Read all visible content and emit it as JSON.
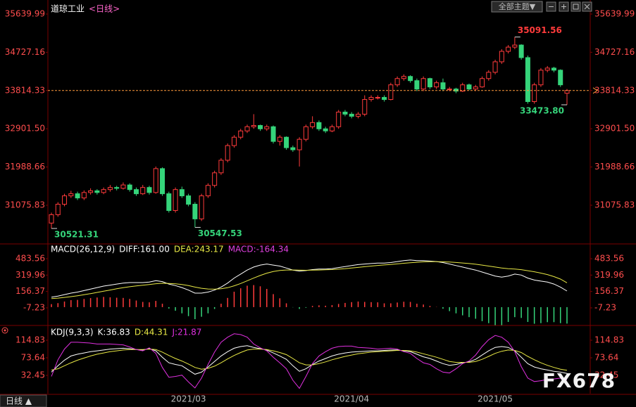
{
  "chart_data": [
    {
      "type": "candlestick",
      "title": "道琼工业",
      "subtitle": "<日线>",
      "up_color": "#ff3b3b",
      "down_color": "#35d47a",
      "last_price_line": true,
      "ylim": [
        30186,
        35841
      ],
      "yticks": [
        35639.99,
        34727.16,
        33814.33,
        {
          "value": 32901.5,
          "label": "32901.50"
        },
        31988.66,
        31075.83
      ],
      "categories": [
        null,
        null,
        null,
        null,
        null,
        null,
        null,
        null,
        null,
        null,
        null,
        null,
        null,
        null,
        null,
        null,
        null,
        null,
        null,
        null,
        null,
        "2021/03",
        null,
        null,
        null,
        null,
        null,
        null,
        null,
        null,
        null,
        null,
        null,
        null,
        null,
        null,
        null,
        null,
        null,
        null,
        null,
        null,
        null,
        null,
        null,
        null,
        "2021/04",
        null,
        null,
        null,
        null,
        null,
        null,
        null,
        null,
        null,
        null,
        null,
        null,
        null,
        null,
        null,
        null,
        null,
        null,
        null,
        null,
        null,
        "2021/05",
        null,
        null,
        null,
        null,
        null,
        null,
        null,
        null,
        null,
        null,
        null
      ],
      "candles": [
        [
          30650,
          30900,
          30521.31,
          30850
        ],
        [
          30850,
          31150,
          30800,
          31100
        ],
        [
          31100,
          31350,
          31050,
          31300
        ],
        [
          31300,
          31420,
          31250,
          31350
        ],
        [
          31350,
          31400,
          31200,
          31250
        ],
        [
          31250,
          31430,
          31200,
          31380
        ],
        [
          31380,
          31480,
          31330,
          31420
        ],
        [
          31420,
          31460,
          31330,
          31380
        ],
        [
          31380,
          31500,
          31340,
          31450
        ],
        [
          31450,
          31560,
          31400,
          31500
        ],
        [
          31500,
          31540,
          31430,
          31480
        ],
        [
          31480,
          31620,
          31450,
          31560
        ],
        [
          31560,
          31600,
          31400,
          31450
        ],
        [
          31450,
          31500,
          31300,
          31350
        ],
        [
          31350,
          31560,
          31320,
          31500
        ],
        [
          31500,
          31540,
          31330,
          31380
        ],
        [
          31380,
          32000,
          31350,
          31950
        ],
        [
          31950,
          31980,
          31300,
          31350
        ],
        [
          31350,
          31400,
          30900,
          30950
        ],
        [
          30950,
          31500,
          30900,
          31450
        ],
        [
          31450,
          31520,
          31250,
          31300
        ],
        [
          31300,
          31350,
          31050,
          31100
        ],
        [
          31100,
          31150,
          30547.53,
          30750
        ],
        [
          30750,
          31350,
          30700,
          31300
        ],
        [
          31300,
          31600,
          31250,
          31550
        ],
        [
          31550,
          31900,
          31500,
          31850
        ],
        [
          31850,
          32200,
          31800,
          32150
        ],
        [
          32150,
          32550,
          32100,
          32500
        ],
        [
          32500,
          32750,
          32450,
          32700
        ],
        [
          32700,
          32900,
          32650,
          32850
        ],
        [
          32850,
          33000,
          32800,
          32950
        ],
        [
          32950,
          33250,
          32900,
          32980
        ],
        [
          32980,
          33000,
          32850,
          32900
        ],
        [
          32900,
          33000,
          32850,
          32950
        ],
        [
          32950,
          32980,
          32550,
          32600
        ],
        [
          32600,
          32750,
          32500,
          32700
        ],
        [
          32700,
          32720,
          32400,
          32450
        ],
        [
          32450,
          32500,
          32350,
          32400
        ],
        [
          32400,
          32700,
          32000,
          32650
        ],
        [
          32650,
          33000,
          32600,
          32950
        ],
        [
          32950,
          33200,
          32900,
          33050
        ],
        [
          33050,
          33100,
          32850,
          32900
        ],
        [
          32900,
          32950,
          32800,
          32850
        ],
        [
          32850,
          33000,
          32820,
          32950
        ],
        [
          32950,
          33350,
          32900,
          33300
        ],
        [
          33300,
          33350,
          33200,
          33250
        ],
        [
          33250,
          33300,
          33150,
          33200
        ],
        [
          33200,
          33300,
          33150,
          33250
        ],
        [
          33250,
          33700,
          33200,
          33600
        ],
        [
          33600,
          33700,
          33550,
          33650
        ],
        [
          33650,
          33700,
          33600,
          33650
        ],
        [
          33650,
          33700,
          33550,
          33600
        ],
        [
          33600,
          34000,
          33580,
          33950
        ],
        [
          33950,
          34150,
          33900,
          34100
        ],
        [
          34100,
          34200,
          34050,
          34150
        ],
        [
          34150,
          34180,
          34000,
          34050
        ],
        [
          34050,
          34100,
          33800,
          33850
        ],
        [
          33850,
          34150,
          33800,
          34100
        ],
        [
          34100,
          34120,
          33850,
          33900
        ],
        [
          33900,
          34050,
          33850,
          34000
        ],
        [
          34000,
          34100,
          33800,
          33850
        ],
        [
          33850,
          33900,
          33800,
          33850
        ],
        [
          33850,
          33880,
          33750,
          33800
        ],
        [
          33800,
          34000,
          33780,
          33950
        ],
        [
          33950,
          33980,
          33820,
          33850
        ],
        [
          33850,
          33950,
          33800,
          33900
        ],
        [
          33900,
          34150,
          33880,
          34100
        ],
        [
          34100,
          34300,
          34050,
          34250
        ],
        [
          34250,
          34550,
          34200,
          34500
        ],
        [
          34500,
          34800,
          34450,
          34750
        ],
        [
          34750,
          34900,
          34700,
          34850
        ],
        [
          34850,
          35091.56,
          34800,
          34900
        ],
        [
          34900,
          34920,
          34550,
          34600
        ],
        [
          34600,
          34650,
          33500,
          33550
        ],
        [
          33550,
          34000,
          33500,
          33950
        ],
        [
          33950,
          34350,
          33900,
          34300
        ],
        [
          34300,
          34400,
          34250,
          34350
        ],
        [
          34350,
          34380,
          34250,
          34300
        ],
        [
          34300,
          34320,
          33900,
          33950
        ],
        [
          33750,
          33850,
          33473.8,
          33814.33
        ]
      ],
      "annotations": [
        {
          "text": "35091.56",
          "candle": 71,
          "part": 1,
          "align": "right"
        },
        {
          "text": "30521.31",
          "candle": 0,
          "part": 2,
          "align": "right"
        },
        {
          "text": "30547.53",
          "candle": 22,
          "part": 2,
          "align": "right"
        },
        {
          "text": "33473.80",
          "candle": 79,
          "part": 2,
          "align": "left"
        }
      ]
    },
    {
      "type": "line",
      "title": "MACD(26,12,9)",
      "ylim": [
        -176,
        610
      ],
      "yticks": [
        483.56,
        319.96,
        156.37,
        -7.23
      ],
      "series": [
        {
          "name": "DIFF",
          "label": "DIFF:161.00",
          "kind": "line",
          "color": "#ffffff",
          "values": [
            100,
            110,
            125,
            140,
            150,
            165,
            180,
            195,
            210,
            220,
            230,
            240,
            245,
            245,
            245,
            250,
            265,
            255,
            230,
            215,
            195,
            170,
            140,
            140,
            150,
            170,
            200,
            240,
            290,
            330,
            370,
            400,
            420,
            430,
            420,
            410,
            390,
            370,
            360,
            365,
            375,
            380,
            380,
            385,
            395,
            405,
            415,
            425,
            430,
            435,
            440,
            440,
            445,
            455,
            465,
            470,
            465,
            465,
            460,
            455,
            445,
            430,
            415,
            400,
            385,
            370,
            350,
            330,
            310,
            300,
            310,
            330,
            320,
            290,
            270,
            260,
            250,
            230,
            200,
            161
          ]
        },
        {
          "name": "DEA",
          "label": "DEA:243.17",
          "kind": "line",
          "color": "#e8e845",
          "values": [
            85,
            90,
            97,
            105,
            114,
            124,
            135,
            147,
            159,
            171,
            183,
            194,
            204,
            212,
            219,
            226,
            234,
            238,
            237,
            233,
            226,
            215,
            200,
            188,
            181,
            179,
            183,
            194,
            213,
            236,
            263,
            290,
            316,
            339,
            355,
            366,
            371,
            371,
            369,
            368,
            369,
            371,
            373,
            375,
            379,
            384,
            390,
            397,
            404,
            410,
            416,
            421,
            426,
            432,
            438,
            444,
            448,
            452,
            454,
            454,
            453,
            450,
            446,
            441,
            435,
            428,
            420,
            410,
            400,
            390,
            384,
            380,
            374,
            364,
            353,
            340,
            325,
            305,
            280,
            243.17
          ]
        },
        {
          "name": "MACD",
          "label": "MACD:-164.34",
          "kind": "histogram",
          "color": "#e040e0",
          "up_color": "#ff3b3b",
          "down_color": "#35d47a",
          "values": [
            30,
            40,
            56,
            70,
            72,
            82,
            90,
            96,
            102,
            98,
            94,
            92,
            82,
            66,
            52,
            48,
            62,
            34,
            -14,
            -36,
            -62,
            -90,
            -120,
            -96,
            -62,
            -18,
            34,
            92,
            154,
            188,
            214,
            220,
            208,
            182,
            130,
            88,
            38,
            -2,
            -18,
            -6,
            12,
            18,
            14,
            20,
            32,
            42,
            50,
            56,
            52,
            50,
            48,
            38,
            38,
            46,
            54,
            52,
            34,
            26,
            12,
            2,
            -16,
            -40,
            -62,
            -82,
            -100,
            -116,
            -140,
            -160,
            -180,
            -180,
            -148,
            -100,
            -108,
            -148,
            -166,
            -160,
            -150,
            -150,
            -160,
            -164.34
          ]
        }
      ]
    },
    {
      "type": "line",
      "title": "KDJ(9,3,3)",
      "ylim": [
        -10.4,
        141.2
      ],
      "yticks": [
        114.83,
        73.64,
        32.45
      ],
      "series": [
        {
          "name": "K",
          "label": "K:36.83",
          "kind": "line",
          "color": "#ffffff",
          "values": [
            40,
            55,
            68,
            78,
            82,
            85,
            88,
            90,
            92,
            94,
            95,
            96,
            95,
            93,
            92,
            95,
            90,
            75,
            62,
            58,
            55,
            45,
            35,
            40,
            52,
            65,
            78,
            88,
            96,
            100,
            102,
            98,
            95,
            92,
            85,
            78,
            70,
            55,
            42,
            48,
            58,
            66,
            72,
            78,
            82,
            85,
            87,
            88,
            89,
            90,
            90,
            91,
            92,
            92,
            90,
            88,
            82,
            76,
            72,
            66,
            60,
            56,
            58,
            62,
            64,
            70,
            80,
            90,
            98,
            100,
            98,
            90,
            75,
            60,
            52,
            48,
            45,
            42,
            40,
            36.83
          ]
        },
        {
          "name": "D",
          "label": "D:44.31",
          "kind": "line",
          "color": "#e8e845",
          "values": [
            45,
            48,
            55,
            62,
            68,
            73,
            78,
            82,
            85,
            88,
            90,
            92,
            93,
            93,
            93,
            94,
            93,
            87,
            79,
            72,
            66,
            59,
            51,
            47,
            49,
            54,
            62,
            71,
            79,
            86,
            92,
            94,
            94,
            93,
            90,
            86,
            81,
            72,
            62,
            57,
            57,
            60,
            64,
            69,
            73,
            77,
            80,
            83,
            85,
            87,
            88,
            89,
            90,
            91,
            91,
            90,
            87,
            83,
            79,
            75,
            70,
            65,
            63,
            63,
            63,
            65,
            70,
            77,
            84,
            89,
            92,
            91,
            86,
            77,
            69,
            62,
            56,
            51,
            47,
            44.31
          ]
        },
        {
          "name": "J",
          "label": "J:21.87",
          "kind": "line",
          "color": "#e030e0",
          "values": [
            30,
            69,
            94,
            110,
            110,
            109,
            108,
            106,
            106,
            106,
            105,
            104,
            99,
            93,
            90,
            97,
            84,
            51,
            28,
            30,
            33,
            17,
            3,
            26,
            58,
            87,
            110,
            122,
            130,
            128,
            122,
            106,
            97,
            90,
            75,
            62,
            48,
            21,
            2,
            30,
            60,
            78,
            88,
            96,
            100,
            101,
            101,
            98,
            97,
            96,
            94,
            95,
            96,
            94,
            88,
            84,
            72,
            62,
            58,
            48,
            40,
            38,
            48,
            60,
            66,
            80,
            100,
            116,
            126,
            122,
            110,
            88,
            53,
            26,
            18,
            20,
            23,
            24,
            26,
            21.87
          ]
        }
      ]
    }
  ],
  "toolbar": {
    "label": "全部主题▼"
  },
  "footer": {
    "label": "日线 ▲"
  },
  "watermark": "FX678"
}
